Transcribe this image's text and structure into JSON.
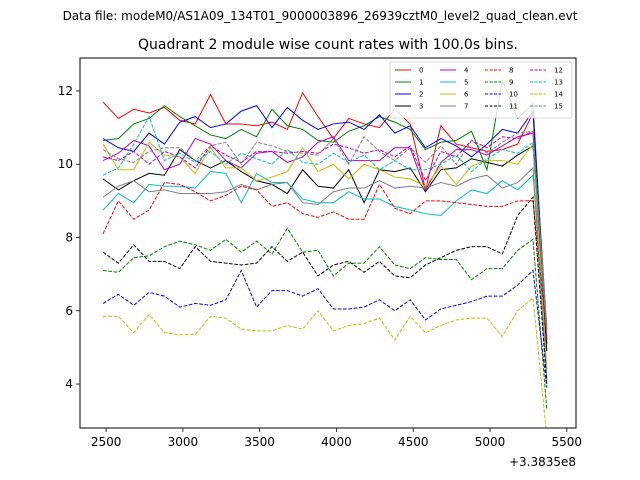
{
  "suptitle": "Data file: modeM0/AS1A09_134T01_9000003896_26939cztM0_level2_quad_clean.evt",
  "title": "Quadrant 2 module wise count rates with 100.0s bins.",
  "x_offset_label": "+3.3835e8",
  "chart_data": {
    "type": "line",
    "title": "Quadrant 2 module wise count rates with 100.0s bins.",
    "xlabel": "",
    "ylabel": "",
    "x_offset": 338350000,
    "xlim": [
      2330,
      5560
    ],
    "ylim": [
      2.8,
      12.9
    ],
    "xticks": [
      2500,
      3000,
      3500,
      4000,
      4500,
      5000,
      5500
    ],
    "xtick_labels": [
      "2500",
      "3000",
      "3500",
      "4000",
      "4500",
      "5000",
      "5500"
    ],
    "yticks": [
      4,
      6,
      8,
      10,
      12
    ],
    "ytick_labels": [
      "4",
      "6",
      "8",
      "10",
      "12"
    ],
    "grid": false,
    "legend_position": "top-right",
    "legend_columns": 4,
    "x": [
      2480,
      2580,
      2680,
      2780,
      2880,
      2980,
      3080,
      3180,
      3280,
      3380,
      3480,
      3580,
      3680,
      3780,
      3880,
      3980,
      4080,
      4180,
      4280,
      4380,
      4480,
      4580,
      4680,
      4780,
      4880,
      4980,
      5080,
      5180,
      5280,
      5370
    ],
    "series": [
      {
        "name": "0",
        "color": "#ff0000",
        "dash": "solid",
        "values": [
          11.7,
          11.25,
          11.5,
          11.4,
          11.55,
          11.2,
          11.1,
          11.9,
          11.1,
          11.1,
          11.05,
          11.15,
          10.95,
          11.95,
          11.3,
          10.7,
          11.25,
          11.1,
          11.0,
          11.5,
          11.1,
          9.3,
          11.05,
          10.55,
          10.45,
          10.35,
          10.4,
          10.55,
          11.4,
          5.5
        ]
      },
      {
        "name": "1",
        "color": "#008000",
        "dash": "solid",
        "values": [
          10.65,
          10.7,
          11.1,
          11.25,
          11.6,
          11.3,
          11.05,
          10.8,
          10.7,
          10.95,
          10.75,
          11.5,
          11.05,
          10.95,
          10.65,
          10.6,
          10.9,
          11.05,
          11.3,
          11.15,
          10.95,
          10.4,
          10.6,
          10.65,
          10.9,
          9.85,
          12.3,
          11.25,
          11.65,
          5.2
        ]
      },
      {
        "name": "2",
        "color": "#0000ff",
        "dash": "solid",
        "values": [
          10.7,
          10.45,
          10.35,
          10.85,
          10.55,
          11.15,
          11.3,
          11.0,
          11.1,
          11.45,
          11.6,
          11.0,
          11.55,
          11.2,
          10.95,
          11.1,
          11.15,
          10.95,
          11.35,
          10.85,
          11.05,
          10.45,
          10.7,
          10.5,
          10.2,
          10.55,
          10.95,
          10.85,
          11.45,
          5.1
        ]
      },
      {
        "name": "3",
        "color": "#000000",
        "dash": "solid",
        "values": [
          9.6,
          9.3,
          9.55,
          9.75,
          9.7,
          10.4,
          10.1,
          9.9,
          10.1,
          9.8,
          9.55,
          9.45,
          9.2,
          9.85,
          9.4,
          9.35,
          9.85,
          8.95,
          9.85,
          9.8,
          9.9,
          9.25,
          9.85,
          9.9,
          10.15,
          10.05,
          9.95,
          10.25,
          10.5,
          4.9
        ]
      },
      {
        "name": "4",
        "color": "#bf00bf",
        "dash": "solid",
        "values": [
          10.1,
          10.3,
          10.65,
          10.5,
          9.85,
          10.0,
          10.7,
          10.55,
          10.1,
          9.9,
          10.3,
          10.35,
          10.05,
          10.2,
          10.6,
          10.75,
          10.1,
          10.1,
          10.1,
          10.45,
          10.45,
          9.3,
          10.05,
          10.4,
          10.4,
          10.25,
          10.5,
          10.75,
          10.85,
          5.2
        ]
      },
      {
        "name": "5",
        "color": "#00bfbf",
        "dash": "solid",
        "values": [
          8.75,
          9.2,
          8.95,
          9.45,
          9.4,
          9.4,
          9.35,
          9.8,
          9.75,
          8.95,
          9.75,
          9.5,
          9.5,
          9.05,
          8.95,
          8.95,
          9.25,
          9.05,
          9.05,
          8.85,
          8.75,
          8.65,
          8.6,
          9.0,
          9.3,
          9.2,
          9.55,
          9.3,
          9.7,
          5.5
        ]
      },
      {
        "name": "6",
        "color": "#bfbf00",
        "dash": "solid",
        "values": [
          10.55,
          9.85,
          9.85,
          10.6,
          10.25,
          10.2,
          9.75,
          10.45,
          9.9,
          9.9,
          9.55,
          9.65,
          9.8,
          10.45,
          9.8,
          10.0,
          9.6,
          10.0,
          9.85,
          9.65,
          9.6,
          9.4,
          9.95,
          9.45,
          9.95,
          10.1,
          10.1,
          10.0,
          10.55,
          4.4
        ]
      },
      {
        "name": "7",
        "color": "#808080",
        "dash": "solid",
        "values": [
          9.1,
          9.4,
          9.55,
          9.25,
          9.3,
          9.2,
          9.2,
          9.2,
          9.25,
          9.45,
          9.3,
          9.45,
          9.5,
          8.95,
          8.9,
          9.25,
          9.35,
          9.35,
          9.55,
          9.35,
          9.4,
          9.35,
          9.5,
          9.4,
          9.6,
          9.7,
          9.35,
          9.5,
          9.9,
          4.1
        ]
      },
      {
        "name": "8",
        "color": "#ff0000",
        "dash": "dashed",
        "values": [
          8.1,
          9.0,
          8.5,
          8.75,
          9.5,
          9.45,
          9.25,
          9.0,
          9.15,
          9.4,
          9.3,
          8.85,
          8.95,
          8.65,
          8.55,
          8.7,
          8.5,
          8.5,
          9.45,
          8.8,
          8.65,
          9.0,
          9.0,
          8.95,
          8.9,
          8.85,
          8.85,
          9.0,
          9.0,
          5.3
        ]
      },
      {
        "name": "9",
        "color": "#008000",
        "dash": "dashed",
        "values": [
          7.1,
          7.05,
          7.45,
          7.5,
          7.75,
          7.9,
          7.8,
          7.65,
          7.95,
          7.6,
          7.9,
          7.55,
          8.25,
          7.6,
          7.65,
          6.95,
          7.3,
          7.3,
          7.75,
          7.25,
          7.15,
          7.45,
          7.4,
          7.4,
          6.85,
          7.15,
          7.15,
          7.65,
          7.95,
          3.3
        ]
      },
      {
        "name": "10",
        "color": "#0000ff",
        "dash": "dashed",
        "values": [
          6.2,
          6.45,
          6.15,
          6.5,
          6.4,
          6.1,
          6.2,
          6.15,
          6.3,
          7.1,
          6.1,
          6.55,
          6.55,
          6.4,
          6.6,
          6.05,
          6.05,
          6.1,
          6.3,
          6.0,
          6.3,
          5.75,
          6.05,
          6.15,
          6.25,
          6.4,
          6.4,
          6.7,
          7.1,
          3.9
        ]
      },
      {
        "name": "11",
        "color": "#000000",
        "dash": "dashed",
        "values": [
          7.6,
          7.3,
          7.8,
          7.35,
          7.35,
          7.15,
          7.75,
          7.35,
          7.3,
          7.25,
          7.3,
          7.75,
          7.35,
          7.6,
          6.95,
          7.25,
          7.35,
          7.05,
          7.35,
          6.95,
          6.9,
          7.25,
          7.45,
          7.65,
          7.75,
          7.75,
          7.55,
          8.6,
          9.1,
          4.0
        ]
      },
      {
        "name": "12",
        "color": "#bf00bf",
        "dash": "dashed",
        "values": [
          10.2,
          10.1,
          10.35,
          10.0,
          10.35,
          10.2,
          9.9,
          10.5,
          10.25,
          10.05,
          10.35,
          10.35,
          10.3,
          10.35,
          10.3,
          10.55,
          10.45,
          10.3,
          10.4,
          10.2,
          10.5,
          9.55,
          10.35,
          10.2,
          10.65,
          10.45,
          10.75,
          10.7,
          10.9,
          5.3
        ]
      },
      {
        "name": "13",
        "color": "#00bfbf",
        "dash": "dashed",
        "values": [
          9.7,
          9.9,
          10.55,
          11.3,
          10.1,
          10.3,
          10.05,
          10.35,
          10.0,
          10.3,
          10.15,
          10.0,
          10.4,
          10.05,
          10.0,
          10.3,
          10.05,
          10.25,
          9.85,
          10.1,
          9.85,
          9.85,
          10.0,
          10.25,
          9.8,
          10.15,
          10.4,
          10.3,
          10.6,
          5.6
        ]
      },
      {
        "name": "14",
        "color": "#bfbf00",
        "dash": "dashed",
        "values": [
          5.85,
          5.85,
          5.4,
          5.9,
          5.4,
          5.35,
          5.35,
          5.85,
          5.8,
          5.5,
          5.45,
          5.45,
          5.6,
          5.5,
          6.0,
          5.45,
          5.6,
          5.65,
          5.8,
          5.2,
          5.85,
          5.4,
          5.6,
          5.75,
          5.8,
          5.8,
          5.3,
          6.0,
          6.35,
          2.55
        ]
      },
      {
        "name": "15",
        "color": "#808080",
        "dash": "dashed",
        "values": [
          10.4,
          10.15,
          10.05,
          10.35,
          10.45,
          10.45,
          10.1,
          10.5,
          10.6,
          10.0,
          10.6,
          10.5,
          10.35,
          10.3,
          10.25,
          10.7,
          10.0,
          10.75,
          10.35,
          10.1,
          10.45,
          10.05,
          10.5,
          10.0,
          10.65,
          10.3,
          10.6,
          10.85,
          10.9,
          5.4
        ]
      }
    ]
  }
}
